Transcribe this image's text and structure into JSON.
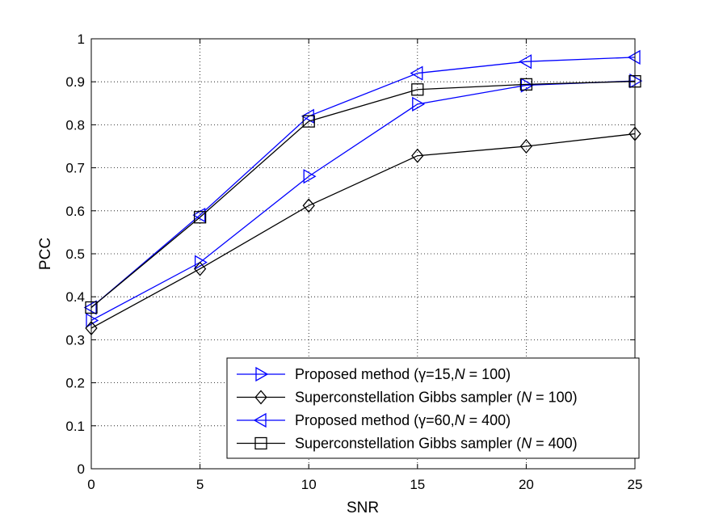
{
  "chart_data": {
    "type": "line",
    "title": "",
    "xlabel": "SNR",
    "ylabel": "PCC",
    "xlim": [
      0,
      25
    ],
    "ylim": [
      0,
      1
    ],
    "grid": true,
    "x_ticks": [
      "0",
      "5",
      "10",
      "15",
      "20",
      "25"
    ],
    "y_ticks": [
      "0",
      "0.1",
      "0.2",
      "0.3",
      "0.4",
      "0.5",
      "0.6",
      "0.7",
      "0.8",
      "0.9",
      "1"
    ],
    "x_tick_values": [
      0,
      5,
      10,
      15,
      20,
      25
    ],
    "y_tick_values": [
      0,
      0.1,
      0.2,
      0.3,
      0.4,
      0.5,
      0.6,
      0.7,
      0.8,
      0.9,
      1
    ],
    "legend_position": "bottom-right",
    "x": [
      0,
      5,
      10,
      15,
      20,
      25
    ],
    "series": [
      {
        "name": "Proposed method (γ=15, N = 100)",
        "legend_parts": [
          {
            "text": "Proposed method (",
            "italic": false
          },
          {
            "text": "γ",
            "italic": false
          },
          {
            "text": "=15,",
            "italic": false
          },
          {
            "text": "N",
            "italic": true
          },
          {
            "text": " = 100)",
            "italic": false
          }
        ],
        "values": [
          0.345,
          0.48,
          0.68,
          0.848,
          0.892,
          0.902
        ],
        "color": "#0000ff",
        "marker": "triangle-right"
      },
      {
        "name": "Superconstellation Gibbs sampler (N = 100)",
        "legend_parts": [
          {
            "text": "Superconstellation Gibbs sampler (",
            "italic": false
          },
          {
            "text": "N",
            "italic": true
          },
          {
            "text": " = 100)",
            "italic": false
          }
        ],
        "values": [
          0.327,
          0.465,
          0.612,
          0.728,
          0.75,
          0.779
        ],
        "color": "#000000",
        "marker": "diamond"
      },
      {
        "name": "Proposed method (γ=60, N = 400)",
        "legend_parts": [
          {
            "text": "Proposed method (",
            "italic": false
          },
          {
            "text": "γ",
            "italic": false
          },
          {
            "text": "=60,",
            "italic": false
          },
          {
            "text": "N",
            "italic": true
          },
          {
            "text": " = 400)",
            "italic": false
          }
        ],
        "values": [
          0.375,
          0.59,
          0.82,
          0.92,
          0.947,
          0.957
        ],
        "color": "#0000ff",
        "marker": "triangle-left"
      },
      {
        "name": "Superconstellation Gibbs sampler (N = 400)",
        "legend_parts": [
          {
            "text": "Superconstellation Gibbs sampler (",
            "italic": false
          },
          {
            "text": "N",
            "italic": true
          },
          {
            "text": " = 400)",
            "italic": false
          }
        ],
        "values": [
          0.375,
          0.585,
          0.808,
          0.882,
          0.894,
          0.901
        ],
        "color": "#000000",
        "marker": "square"
      }
    ]
  }
}
